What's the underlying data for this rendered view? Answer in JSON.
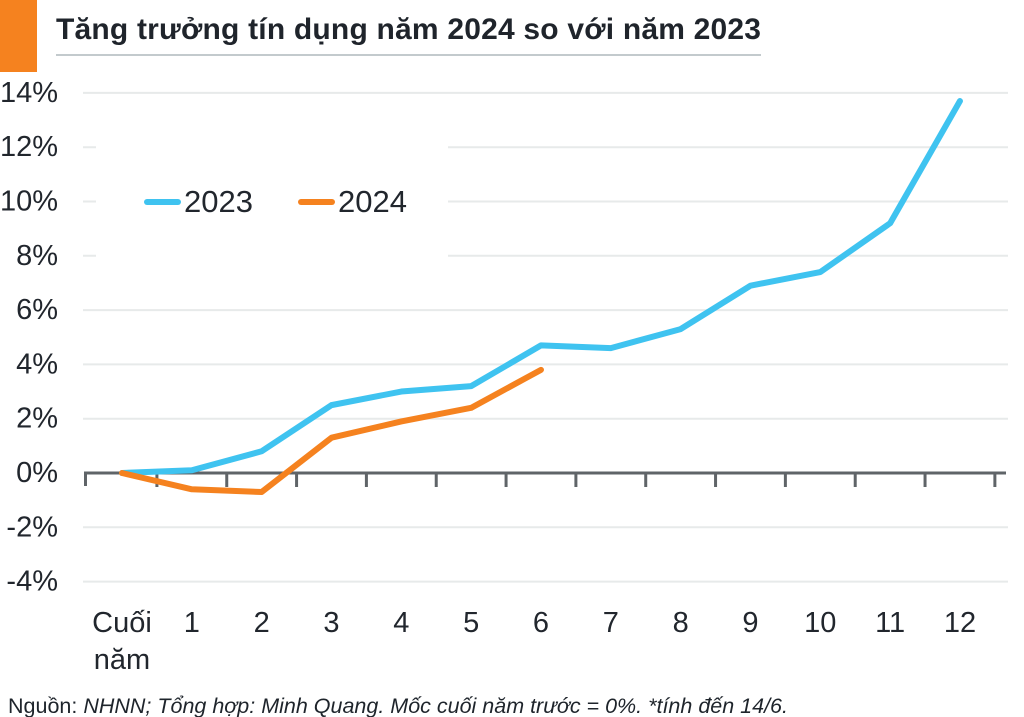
{
  "header": {
    "title": "Tăng trưởng tín dụng năm 2024 so với năm 2023",
    "accent_color": "#F5821F"
  },
  "chart_data": {
    "type": "line",
    "title": "Tăng trưởng tín dụng năm 2024 so với năm 2023",
    "categories": [
      "Cuối năm",
      "1",
      "2",
      "3",
      "4",
      "5",
      "6",
      "7",
      "8",
      "9",
      "10",
      "11",
      "12"
    ],
    "series": [
      {
        "name": "2023",
        "color": "#3FC3F0",
        "values": [
          0,
          0.1,
          0.8,
          2.5,
          3.0,
          3.2,
          4.7,
          4.6,
          5.3,
          6.9,
          7.4,
          9.2,
          13.7
        ]
      },
      {
        "name": "2024",
        "color": "#F5821F",
        "values": [
          0,
          -0.6,
          -0.7,
          1.3,
          1.9,
          2.4,
          3.8
        ]
      }
    ],
    "xlabel": "",
    "ylabel": "",
    "ylim": [
      -4,
      14
    ],
    "yticks": [
      -4,
      -2,
      0,
      2,
      4,
      6,
      8,
      10,
      12,
      14
    ],
    "ytick_labels": [
      "-4%",
      "-2%",
      "0%",
      "2%",
      "4%",
      "6%",
      "8%",
      "10%",
      "12%",
      "14%"
    ],
    "grid": "horizontal",
    "legend_position": "top-left-inside",
    "grid_color": "#e7eaea",
    "axis_color": "#5f6468",
    "label_color": "#21262d"
  },
  "footer": {
    "prefix": "Nguồn:",
    "text": " NHNN; Tổng hợp: Minh Quang. Mốc cuối năm trước = 0%. *tính đến 14/6."
  }
}
